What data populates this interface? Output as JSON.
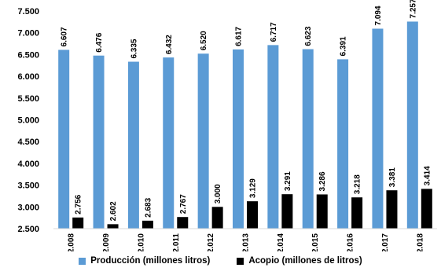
{
  "chart_data": {
    "type": "bar",
    "categories": [
      "2.008",
      "2.009",
      "2.010",
      "2.011",
      "2.012",
      "2.013",
      "2.014",
      "2.015",
      "2.016",
      "2.017",
      "2.018"
    ],
    "series": [
      {
        "name": "Producción (millones litros)",
        "color": "#5B9BD5",
        "values": [
          6607,
          6476,
          6335,
          6432,
          6520,
          6617,
          6717,
          6623,
          6391,
          7094,
          7257
        ],
        "labels": [
          "6.607",
          "6.476",
          "6.335",
          "6.432",
          "6.520",
          "6.617",
          "6.717",
          "6.623",
          "6.391",
          "7.094",
          "7.257"
        ]
      },
      {
        "name": "Acopio (millones de litros)",
        "color": "#000000",
        "values": [
          2756,
          2602,
          2683,
          2767,
          3000,
          3129,
          3291,
          3286,
          3218,
          3381,
          3414
        ],
        "labels": [
          "2.756",
          "2.602",
          "2.683",
          "2.767",
          "3.000",
          "3.129",
          "3.291",
          "3.286",
          "3.218",
          "3.381",
          "3.414"
        ]
      }
    ],
    "ylim": [
      2500,
      7500
    ],
    "yticks": [
      2500,
      3000,
      3500,
      4000,
      4500,
      5000,
      5500,
      6000,
      6500,
      7000,
      7500
    ],
    "ytick_labels": [
      "2.500",
      "3.000",
      "3.500",
      "4.000",
      "4.500",
      "5.000",
      "5.500",
      "6.000",
      "6.500",
      "7.000",
      "7.500"
    ],
    "grid": false,
    "legend": "bottom",
    "title": "",
    "xlabel": "",
    "ylabel": ""
  }
}
